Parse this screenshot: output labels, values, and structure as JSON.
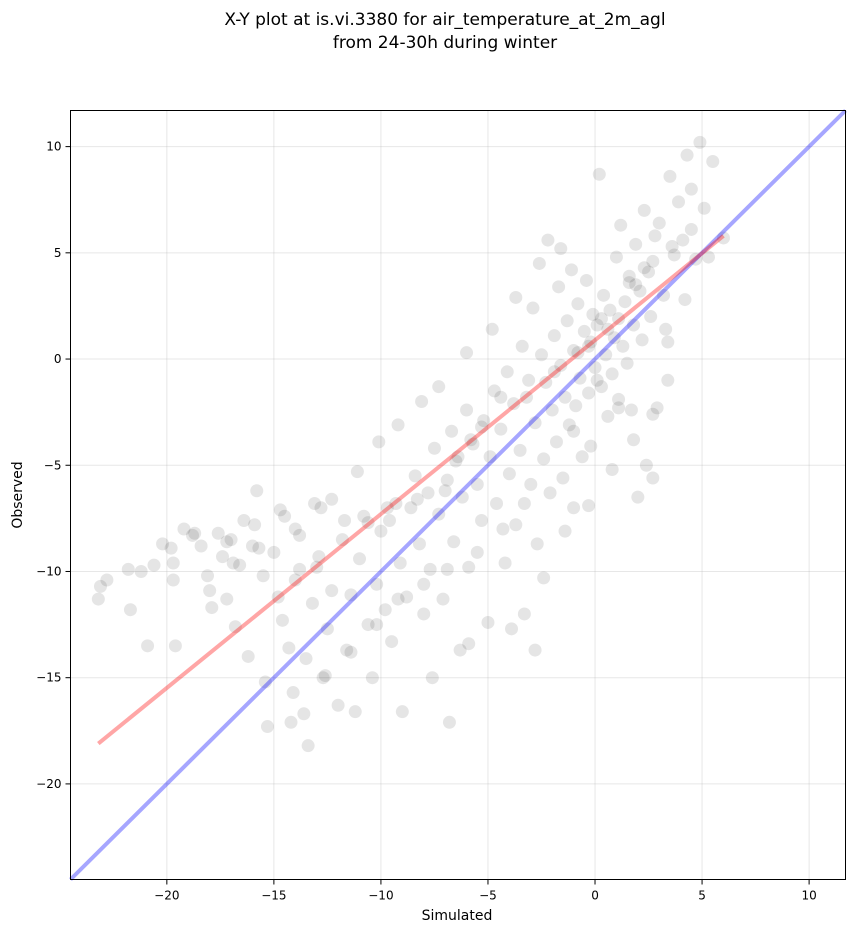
{
  "chart_data": {
    "type": "scatter",
    "title": "X-Y plot at is.vi.3380 for air_temperature_at_2m_agl\nfrom 24-30h during winter",
    "xlabel": "Simulated",
    "ylabel": "Observed",
    "xlim": [
      -24.5,
      11.7
    ],
    "ylim": [
      -24.5,
      11.7
    ],
    "xticks": [
      -20,
      -15,
      -10,
      -5,
      0,
      5,
      10
    ],
    "yticks": [
      -20,
      -15,
      -10,
      -5,
      0,
      5,
      10
    ],
    "xtick_labels": [
      "−20",
      "−15",
      "−10",
      "−5",
      "0",
      "5",
      "10"
    ],
    "ytick_labels": [
      "−20",
      "−15",
      "−10",
      "−5",
      "0",
      "5",
      "10"
    ],
    "grid": true,
    "legend": "none",
    "colors": {
      "points": "#000000",
      "fit_line": "#ff0000",
      "identity_line": "#0000ff",
      "grid": "#b0b0b0"
    },
    "series": [
      {
        "type": "scatter",
        "alpha": 0.1,
        "points": [
          [
            -23.2,
            -11.3
          ],
          [
            -23.1,
            -10.7
          ],
          [
            -22.8,
            -10.4
          ],
          [
            -21.8,
            -9.9
          ],
          [
            -21.7,
            -11.8
          ],
          [
            -21.2,
            -10.0
          ],
          [
            -20.9,
            -13.5
          ],
          [
            -20.6,
            -9.7
          ],
          [
            -20.2,
            -8.7
          ],
          [
            -19.8,
            -8.9
          ],
          [
            -19.7,
            -10.4
          ],
          [
            -19.6,
            -13.5
          ],
          [
            -19.2,
            -8.0
          ],
          [
            -18.8,
            -8.3
          ],
          [
            -18.4,
            -8.8
          ],
          [
            -18.1,
            -10.2
          ],
          [
            -17.9,
            -11.7
          ],
          [
            -17.6,
            -8.2
          ],
          [
            -17.4,
            -9.3
          ],
          [
            -17.2,
            -11.3
          ],
          [
            -17.0,
            -8.5
          ],
          [
            -16.8,
            -12.6
          ],
          [
            -16.6,
            -9.7
          ],
          [
            -16.4,
            -7.6
          ],
          [
            -16.2,
            -14.0
          ],
          [
            -16.0,
            -8.8
          ],
          [
            -15.8,
            -6.2
          ],
          [
            -15.5,
            -10.2
          ],
          [
            -15.4,
            -15.2
          ],
          [
            -15.3,
            -17.3
          ],
          [
            -15.0,
            -9.1
          ],
          [
            -14.8,
            -11.2
          ],
          [
            -14.6,
            -12.3
          ],
          [
            -14.5,
            -7.4
          ],
          [
            -14.3,
            -13.6
          ],
          [
            -14.2,
            -17.1
          ],
          [
            -14.0,
            -10.4
          ],
          [
            -13.8,
            -8.3
          ],
          [
            -13.6,
            -16.7
          ],
          [
            -13.5,
            -14.1
          ],
          [
            -13.4,
            -18.2
          ],
          [
            -13.2,
            -11.5
          ],
          [
            -13.0,
            -9.8
          ],
          [
            -12.8,
            -7.0
          ],
          [
            -12.7,
            -15.0
          ],
          [
            -12.5,
            -12.7
          ],
          [
            -12.3,
            -10.9
          ],
          [
            -12.0,
            -16.3
          ],
          [
            -11.8,
            -8.5
          ],
          [
            -11.6,
            -13.7
          ],
          [
            -11.4,
            -11.1
          ],
          [
            -11.2,
            -16.6
          ],
          [
            -11.0,
            -9.4
          ],
          [
            -10.8,
            -7.4
          ],
          [
            -10.6,
            -12.5
          ],
          [
            -10.4,
            -15.0
          ],
          [
            -10.2,
            -10.6
          ],
          [
            -10.0,
            -8.1
          ],
          [
            -9.8,
            -11.8
          ],
          [
            -9.6,
            -7.6
          ],
          [
            -9.5,
            -13.3
          ],
          [
            -9.3,
            -6.8
          ],
          [
            -9.1,
            -9.6
          ],
          [
            -9.0,
            -16.6
          ],
          [
            -8.8,
            -11.2
          ],
          [
            -8.6,
            -7.0
          ],
          [
            -8.4,
            -5.5
          ],
          [
            -8.2,
            -8.7
          ],
          [
            -8.0,
            -12.0
          ],
          [
            -7.8,
            -6.3
          ],
          [
            -7.7,
            -9.9
          ],
          [
            -7.5,
            -4.2
          ],
          [
            -7.3,
            -7.3
          ],
          [
            -7.1,
            -11.3
          ],
          [
            -6.9,
            -5.7
          ],
          [
            -6.8,
            -17.1
          ],
          [
            -6.7,
            -3.4
          ],
          [
            -6.6,
            -8.6
          ],
          [
            -6.5,
            -4.8
          ],
          [
            -6.3,
            -13.7
          ],
          [
            -6.2,
            -6.5
          ],
          [
            -6.0,
            -2.4
          ],
          [
            -5.9,
            -9.8
          ],
          [
            -5.7,
            -4.0
          ],
          [
            -5.5,
            -5.9
          ],
          [
            -5.3,
            -7.6
          ],
          [
            -5.2,
            -2.9
          ],
          [
            -5.0,
            -12.4
          ],
          [
            -4.9,
            -4.6
          ],
          [
            -4.7,
            -1.5
          ],
          [
            -4.6,
            -6.8
          ],
          [
            -4.4,
            -3.3
          ],
          [
            -4.2,
            -9.6
          ],
          [
            -4.1,
            -0.6
          ],
          [
            -4.0,
            -5.4
          ],
          [
            -3.8,
            -2.1
          ],
          [
            -3.7,
            -7.8
          ],
          [
            -3.5,
            -4.3
          ],
          [
            -3.4,
            0.6
          ],
          [
            -3.3,
            -12.0
          ],
          [
            -3.2,
            -1.8
          ],
          [
            -3.0,
            -5.9
          ],
          [
            -2.9,
            2.4
          ],
          [
            -2.8,
            -3.0
          ],
          [
            -2.7,
            -8.7
          ],
          [
            -2.5,
            0.2
          ],
          [
            -2.4,
            -4.7
          ],
          [
            -2.3,
            -1.1
          ],
          [
            -2.2,
            5.6
          ],
          [
            -2.1,
            -6.3
          ],
          [
            -2.0,
            -2.4
          ],
          [
            -1.9,
            1.1
          ],
          [
            -1.8,
            -3.9
          ],
          [
            -1.7,
            3.4
          ],
          [
            -1.6,
            -0.3
          ],
          [
            -1.5,
            -5.6
          ],
          [
            -1.4,
            -1.8
          ],
          [
            -1.3,
            1.8
          ],
          [
            -1.2,
            -3.1
          ],
          [
            -1.1,
            4.2
          ],
          [
            -1.0,
            0.4
          ],
          [
            -0.9,
            -2.2
          ],
          [
            -0.8,
            2.6
          ],
          [
            -0.7,
            -0.9
          ],
          [
            -0.6,
            -4.6
          ],
          [
            -0.5,
            1.3
          ],
          [
            -0.4,
            3.7
          ],
          [
            -0.3,
            -1.6
          ],
          [
            -0.2,
            0.8
          ],
          [
            -0.1,
            2.1
          ],
          [
            0.0,
            -0.4
          ],
          [
            0.1,
            1.6
          ],
          [
            0.2,
            8.7
          ],
          [
            0.3,
            -1.3
          ],
          [
            0.4,
            3.0
          ],
          [
            0.5,
            0.2
          ],
          [
            0.6,
            -2.7
          ],
          [
            0.7,
            2.3
          ],
          [
            0.8,
            -0.7
          ],
          [
            0.9,
            1.0
          ],
          [
            1.0,
            4.8
          ],
          [
            1.1,
            -1.9
          ],
          [
            1.2,
            6.3
          ],
          [
            1.3,
            0.6
          ],
          [
            1.4,
            2.7
          ],
          [
            1.5,
            -0.2
          ],
          [
            1.6,
            3.6
          ],
          [
            1.7,
            -2.4
          ],
          [
            1.8,
            1.6
          ],
          [
            1.9,
            5.4
          ],
          [
            2.0,
            -6.5
          ],
          [
            2.1,
            3.2
          ],
          [
            2.2,
            0.9
          ],
          [
            2.3,
            7.0
          ],
          [
            2.4,
            -5.0
          ],
          [
            2.5,
            4.1
          ],
          [
            2.6,
            2.0
          ],
          [
            2.7,
            -5.6
          ],
          [
            2.8,
            5.8
          ],
          [
            2.9,
            -2.3
          ],
          [
            3.0,
            6.4
          ],
          [
            3.2,
            3.0
          ],
          [
            3.4,
            0.8
          ],
          [
            3.5,
            8.6
          ],
          [
            3.7,
            4.9
          ],
          [
            3.9,
            7.4
          ],
          [
            4.1,
            5.6
          ],
          [
            4.3,
            9.6
          ],
          [
            4.5,
            8.0
          ],
          [
            4.7,
            4.7
          ],
          [
            4.9,
            10.2
          ],
          [
            5.1,
            7.1
          ],
          [
            5.3,
            4.8
          ],
          [
            5.5,
            9.3
          ],
          [
            6.0,
            5.7
          ],
          [
            0.1,
            -1.0
          ],
          [
            0.3,
            1.9
          ],
          [
            -0.3,
            0.6
          ],
          [
            1.1,
            1.9
          ],
          [
            1.6,
            3.9
          ],
          [
            2.3,
            4.3
          ],
          [
            -9.7,
            -7.0
          ],
          [
            -8.3,
            -6.6
          ],
          [
            -7.0,
            -6.2
          ],
          [
            -5.8,
            -3.8
          ],
          [
            -4.4,
            -1.8
          ],
          [
            -10.6,
            -7.7
          ],
          [
            -11.7,
            -7.6
          ],
          [
            -12.9,
            -9.3
          ],
          [
            -13.8,
            -9.9
          ],
          [
            -6.4,
            -4.6
          ],
          [
            -5.3,
            -3.2
          ],
          [
            -3.1,
            -1.0
          ],
          [
            -1.9,
            -0.6
          ],
          [
            -0.8,
            0.3
          ],
          [
            0.6,
            1.4
          ],
          [
            1.9,
            3.5
          ],
          [
            2.7,
            4.6
          ],
          [
            3.6,
            5.3
          ],
          [
            4.5,
            6.1
          ],
          [
            -16.9,
            -9.6
          ],
          [
            -18.0,
            -10.9
          ],
          [
            -15.7,
            -8.9
          ],
          [
            -14.0,
            -8.0
          ],
          [
            -12.3,
            -6.6
          ],
          [
            -11.1,
            -5.3
          ],
          [
            -10.1,
            -3.9
          ],
          [
            -9.2,
            -3.1
          ],
          [
            -8.1,
            -2.0
          ],
          [
            -7.3,
            -1.3
          ],
          [
            -6.0,
            0.3
          ],
          [
            -4.8,
            1.4
          ],
          [
            -3.7,
            2.9
          ],
          [
            -2.6,
            4.5
          ],
          [
            -1.6,
            5.2
          ],
          [
            -1.0,
            -3.4
          ],
          [
            -0.2,
            -4.1
          ],
          [
            -3.3,
            -6.8
          ],
          [
            -4.3,
            -8.0
          ],
          [
            -5.5,
            -9.1
          ],
          [
            -6.9,
            -9.9
          ],
          [
            -8.0,
            -10.6
          ],
          [
            -9.2,
            -11.3
          ],
          [
            -10.2,
            -12.5
          ],
          [
            -11.4,
            -13.8
          ],
          [
            -12.6,
            -14.9
          ],
          [
            -14.1,
            -15.7
          ],
          [
            -7.6,
            -15.0
          ],
          [
            -5.9,
            -13.4
          ],
          [
            -3.9,
            -12.7
          ],
          [
            -2.4,
            -10.3
          ],
          [
            -1.4,
            -8.1
          ],
          [
            -0.3,
            -6.9
          ],
          [
            0.8,
            -5.2
          ],
          [
            1.8,
            -3.8
          ],
          [
            2.7,
            -2.6
          ],
          [
            3.4,
            -1.0
          ],
          [
            3.3,
            1.4
          ],
          [
            4.2,
            2.8
          ],
          [
            -2.8,
            -13.7
          ],
          [
            -1.0,
            -7.0
          ],
          [
            1.1,
            -2.3
          ],
          [
            -13.1,
            -6.8
          ],
          [
            -14.7,
            -7.1
          ],
          [
            -15.9,
            -7.8
          ],
          [
            -17.2,
            -8.6
          ],
          [
            -18.7,
            -8.2
          ],
          [
            -19.7,
            -9.6
          ]
        ]
      },
      {
        "type": "line",
        "name": "",
        "points": [
          [
            -23.2,
            -18.1
          ],
          [
            6.0,
            5.8
          ]
        ]
      },
      {
        "type": "line",
        "name": "",
        "points": [
          [
            -24.5,
            -24.5
          ],
          [
            11.7,
            11.7
          ]
        ]
      }
    ]
  }
}
